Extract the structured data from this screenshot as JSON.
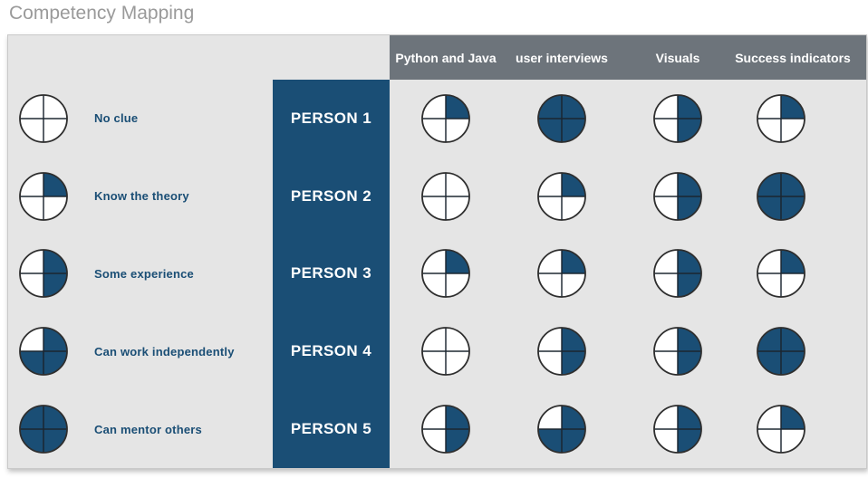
{
  "title": "Competency Mapping",
  "colors": {
    "accent_blue": "#1a4e75",
    "header_gray": "#6d747b",
    "panel_bg": "#e5e5e5",
    "title_gray": "#9a9a9a",
    "ball_outline": "#2e2e2e",
    "ball_line": "#1c2630",
    "ball_empty": "#ffffff"
  },
  "chart_data": {
    "type": "heatmap",
    "title": "Competency Mapping",
    "encoding": "harvey-ball: number of quarter wedges filled clockwise from top, scale 0-4",
    "columns": [
      "Python and Java",
      "user interviews",
      "Visuals",
      "Success indicators"
    ],
    "rows": [
      "PERSON 1",
      "PERSON 2",
      "PERSON 3",
      "PERSON 4",
      "PERSON 5"
    ],
    "values": [
      [
        1,
        4,
        2,
        1
      ],
      [
        0,
        1,
        2,
        4
      ],
      [
        1,
        1,
        2,
        1
      ],
      [
        0,
        2,
        2,
        4
      ],
      [
        2,
        3,
        2,
        1
      ]
    ],
    "legend": [
      {
        "level": 0,
        "label": "No clue"
      },
      {
        "level": 1,
        "label": "Know the theory"
      },
      {
        "level": 2,
        "label": "Some experience"
      },
      {
        "level": 3,
        "label": "Can work independently"
      },
      {
        "level": 4,
        "label": "Can mentor others"
      }
    ],
    "value_range": [
      0,
      4
    ],
    "legend_position": "left",
    "grid": false
  }
}
